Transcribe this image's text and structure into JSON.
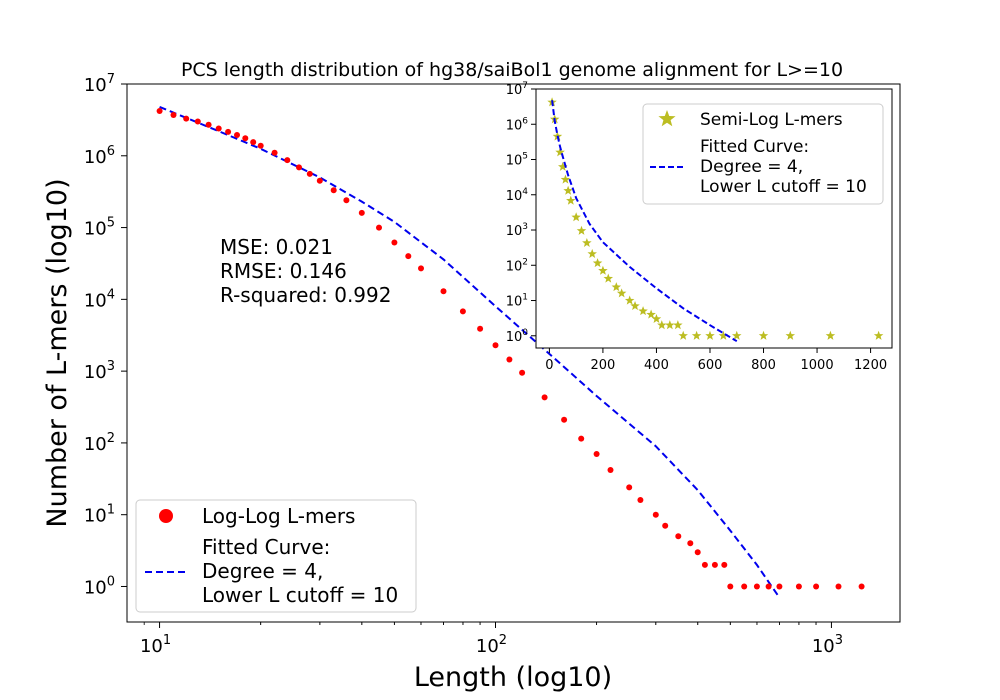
{
  "chart_data": [
    {
      "type": "scatter",
      "title": "PCS length distribution of hg38/saiBol1 genome alignment for L>=10",
      "xlabel": "Length (log10)",
      "ylabel": "Number of L-mers (log10)",
      "x_scale": "log",
      "y_scale": "log",
      "xlim": [
        8,
        1600
      ],
      "ylim": [
        0.32,
        10000000
      ],
      "x_ticks": [
        {
          "value": 10,
          "label": "10",
          "exp": "1"
        },
        {
          "value": 100,
          "label": "10",
          "exp": "2"
        },
        {
          "value": 1000,
          "label": "10",
          "exp": "3"
        }
      ],
      "y_ticks": [
        {
          "value": 1,
          "label": "10",
          "exp": "0"
        },
        {
          "value": 10,
          "label": "10",
          "exp": "1"
        },
        {
          "value": 100,
          "label": "10",
          "exp": "2"
        },
        {
          "value": 1000,
          "label": "10",
          "exp": "3"
        },
        {
          "value": 10000,
          "label": "10",
          "exp": "4"
        },
        {
          "value": 100000,
          "label": "10",
          "exp": "5"
        },
        {
          "value": 1000000,
          "label": "10",
          "exp": "6"
        },
        {
          "value": 10000000,
          "label": "10",
          "exp": "7"
        }
      ],
      "series": [
        {
          "name": "Log-Log L-mers",
          "kind": "points",
          "color": "#ff0000",
          "x": [
            10,
            11,
            12,
            13,
            14,
            15,
            16,
            17,
            18,
            19,
            20,
            22,
            24,
            26,
            28,
            30,
            33,
            36,
            40,
            45,
            50,
            55,
            60,
            70,
            80,
            90,
            100,
            110,
            120,
            140,
            160,
            180,
            200,
            220,
            250,
            270,
            300,
            320,
            350,
            380,
            400,
            420,
            450,
            480,
            500,
            550,
            600,
            650,
            700,
            800,
            900,
            1050,
            1230
          ],
          "y": [
            4200000,
            3700000,
            3300000,
            3000000,
            2700000,
            2400000,
            2150000,
            1950000,
            1750000,
            1550000,
            1380000,
            1100000,
            870000,
            690000,
            560000,
            450000,
            330000,
            240000,
            160000,
            100000,
            62000,
            40000,
            27000,
            13000,
            6800,
            3900,
            2300,
            1450,
            950,
            430,
            210,
            115,
            70,
            42,
            24,
            16,
            10,
            7,
            5,
            4,
            3,
            2,
            2,
            2,
            1,
            1,
            1,
            1,
            1,
            1,
            1,
            1,
            1
          ]
        },
        {
          "name": "Fitted Curve:\nDegree = 4,\nLower L cutoff = 10",
          "kind": "line",
          "color": "#0000ee",
          "dash": "dashed",
          "x": [
            10,
            15,
            20,
            30,
            40,
            50,
            70,
            100,
            150,
            200,
            300,
            400,
            500,
            600,
            700
          ],
          "y": [
            4800000,
            2200000,
            1250000,
            500000,
            230000,
            120000,
            36000,
            8000,
            1500,
            450,
            90,
            22,
            6,
            2,
            0.7
          ]
        }
      ],
      "legend": {
        "placement": "bottom-left"
      },
      "annotation": [
        "MSE: 0.021",
        "RMSE: 0.146",
        "R-squared: 0.992"
      ]
    },
    {
      "type": "scatter",
      "x_scale": "linear",
      "y_scale": "log",
      "xlim": [
        -50,
        1280
      ],
      "ylim": [
        0.45,
        10000000
      ],
      "x_ticks": [
        0,
        200,
        400,
        600,
        800,
        1000,
        1200
      ],
      "y_ticks": [
        {
          "value": 1,
          "label": "10",
          "exp": "0"
        },
        {
          "value": 10,
          "label": "10",
          "exp": "1"
        },
        {
          "value": 100,
          "label": "10",
          "exp": "2"
        },
        {
          "value": 1000,
          "label": "10",
          "exp": "3"
        },
        {
          "value": 10000,
          "label": "10",
          "exp": "4"
        },
        {
          "value": 100000,
          "label": "10",
          "exp": "5"
        },
        {
          "value": 1000000,
          "label": "10",
          "exp": "6"
        },
        {
          "value": 10000000,
          "label": "10",
          "exp": "7"
        }
      ],
      "series": [
        {
          "name": "Semi-Log L-mers",
          "kind": "points",
          "color": "#bcbd22",
          "x": [
            10,
            20,
            30,
            40,
            50,
            60,
            70,
            80,
            100,
            120,
            140,
            160,
            180,
            200,
            220,
            250,
            270,
            300,
            320,
            350,
            380,
            400,
            420,
            450,
            480,
            500,
            550,
            600,
            650,
            700,
            800,
            900,
            1050,
            1230
          ],
          "y": [
            4200000,
            1380000,
            450000,
            160000,
            62000,
            27000,
            13000,
            6800,
            2300,
            950,
            430,
            210,
            115,
            70,
            42,
            24,
            16,
            10,
            7,
            5,
            4,
            3,
            2,
            2,
            2,
            1,
            1,
            1,
            1,
            1,
            1,
            1,
            1,
            1
          ]
        },
        {
          "name": "Fitted Curve:\nDegree = 4,\nLower L cutoff = 10",
          "kind": "line",
          "color": "#0000ee",
          "dash": "dashed",
          "x": [
            10,
            20,
            30,
            40,
            50,
            70,
            100,
            150,
            200,
            300,
            400,
            500,
            600,
            700
          ],
          "y": [
            4800000,
            1250000,
            500000,
            230000,
            120000,
            36000,
            8000,
            1500,
            450,
            90,
            22,
            6,
            2,
            0.7
          ]
        }
      ],
      "legend": {
        "placement": "upper-right"
      }
    }
  ]
}
